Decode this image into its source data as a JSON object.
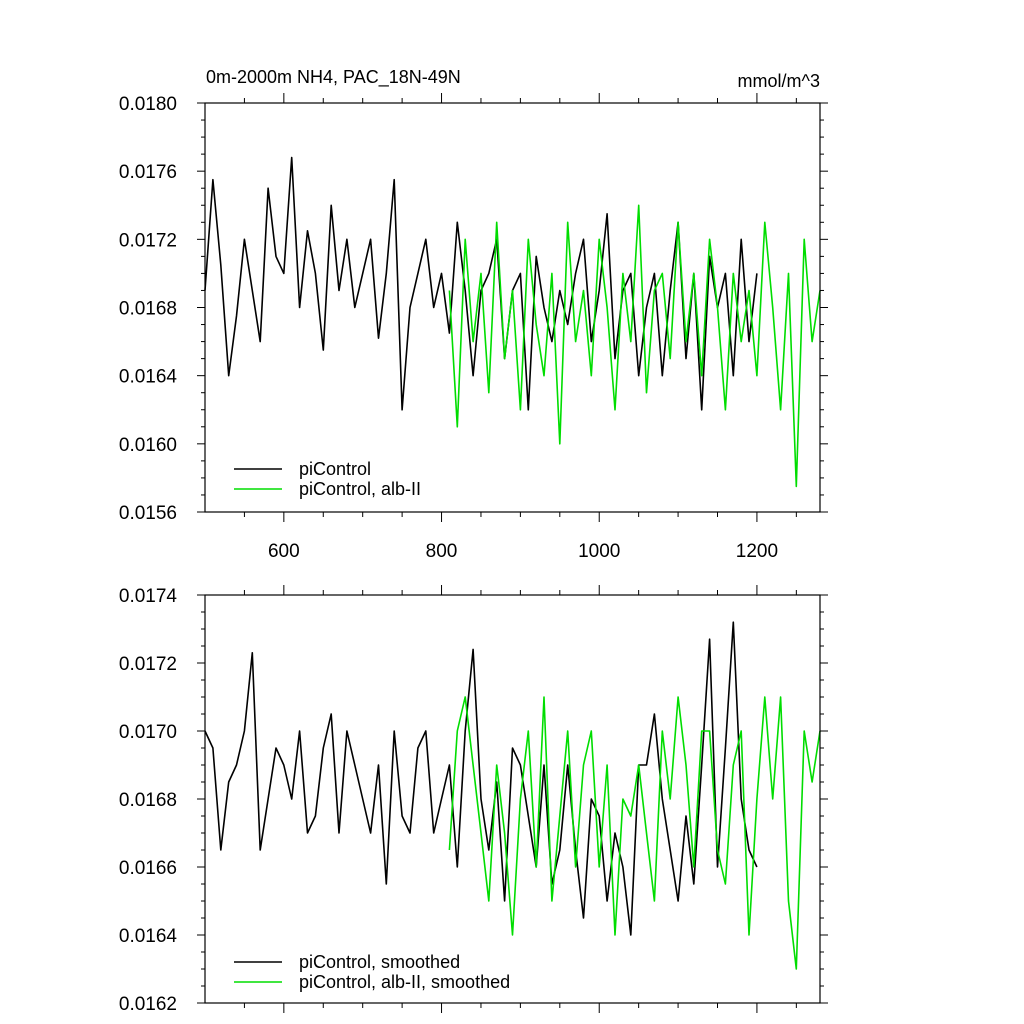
{
  "chart_data": [
    {
      "type": "line",
      "title": "0m-2000m NH4, PAC_18N-49N",
      "units": "mmol/m^3",
      "xlim": [
        500,
        1280
      ],
      "ylim": [
        0.0156,
        0.018
      ],
      "xticks": [
        600,
        800,
        1000,
        1200
      ],
      "xtick_labels": [
        "600",
        "800",
        "1000",
        "1200"
      ],
      "show_xtick_labels": true,
      "yticks": [
        0.0156,
        0.016,
        0.0164,
        0.0168,
        0.0172,
        0.0176,
        0.018
      ],
      "ytick_labels": [
        "0.0156",
        "0.0160",
        "0.0164",
        "0.0168",
        "0.0172",
        "0.0176",
        "0.0180"
      ],
      "grid": false,
      "legend_position": "bottom-left",
      "series": [
        {
          "name": "piControl",
          "color": "#000000",
          "x_start": 500,
          "x_end": 1200,
          "x_step": 10,
          "values": [
            0.0169,
            0.01755,
            0.01705,
            0.0164,
            0.01675,
            0.0172,
            0.0169,
            0.0166,
            0.0175,
            0.0171,
            0.017,
            0.01768,
            0.0168,
            0.01725,
            0.017,
            0.01655,
            0.0174,
            0.0169,
            0.0172,
            0.0168,
            0.017,
            0.0172,
            0.01662,
            0.017,
            0.01755,
            0.0162,
            0.0168,
            0.017,
            0.0172,
            0.0168,
            0.017,
            0.01665,
            0.0173,
            0.0169,
            0.0164,
            0.0169,
            0.017,
            0.0172,
            0.0165,
            0.0169,
            0.017,
            0.0162,
            0.0171,
            0.0168,
            0.0166,
            0.0169,
            0.0167,
            0.017,
            0.0172,
            0.0166,
            0.0169,
            0.01735,
            0.0165,
            0.0169,
            0.017,
            0.0164,
            0.0168,
            0.017,
            0.0164,
            0.0169,
            0.0173,
            0.0165,
            0.017,
            0.0162,
            0.0171,
            0.0168,
            0.017,
            0.0164,
            0.0172,
            0.0166,
            0.017
          ]
        },
        {
          "name": "piControl, alb-II",
          "color": "#00dd00",
          "x_start": 810,
          "x_end": 1280,
          "x_step": 10,
          "values": [
            0.0169,
            0.0161,
            0.0172,
            0.0166,
            0.017,
            0.0163,
            0.0173,
            0.0165,
            0.0169,
            0.0162,
            0.0172,
            0.0167,
            0.0164,
            0.017,
            0.016,
            0.0173,
            0.0166,
            0.0169,
            0.0164,
            0.0172,
            0.0168,
            0.0162,
            0.017,
            0.0166,
            0.0174,
            0.0163,
            0.0169,
            0.017,
            0.0165,
            0.0173,
            0.0166,
            0.017,
            0.0164,
            0.0172,
            0.0168,
            0.0162,
            0.017,
            0.0166,
            0.0169,
            0.0164,
            0.0173,
            0.0168,
            0.0162,
            0.017,
            0.01575,
            0.0172,
            0.0166,
            0.0169
          ]
        }
      ]
    },
    {
      "type": "line",
      "title": "",
      "xlim": [
        500,
        1280
      ],
      "ylim": [
        0.0162,
        0.0174
      ],
      "xticks": [
        600,
        800,
        1000,
        1200
      ],
      "show_xtick_labels": false,
      "yticks": [
        0.0162,
        0.0164,
        0.0166,
        0.0168,
        0.017,
        0.0172,
        0.0174
      ],
      "ytick_labels": [
        "0.0162",
        "0.0164",
        "0.0166",
        "0.0168",
        "0.0170",
        "0.0172",
        "0.0174"
      ],
      "grid": false,
      "legend_position": "bottom-left",
      "series": [
        {
          "name": "piControl, smoothed",
          "color": "#000000",
          "x_start": 500,
          "x_end": 1200,
          "x_step": 10,
          "values": [
            0.017,
            0.01695,
            0.01665,
            0.01685,
            0.0169,
            0.017,
            0.01723,
            0.01665,
            0.0168,
            0.01695,
            0.0169,
            0.0168,
            0.017,
            0.0167,
            0.01675,
            0.01695,
            0.01705,
            0.0167,
            0.017,
            0.0169,
            0.0168,
            0.0167,
            0.0169,
            0.01655,
            0.017,
            0.01675,
            0.0167,
            0.01695,
            0.017,
            0.0167,
            0.0168,
            0.0169,
            0.0166,
            0.017,
            0.01724,
            0.0168,
            0.01665,
            0.01685,
            0.0165,
            0.01695,
            0.0169,
            0.01675,
            0.0166,
            0.0169,
            0.01655,
            0.01665,
            0.0169,
            0.01665,
            0.01645,
            0.0168,
            0.01675,
            0.0165,
            0.0167,
            0.0166,
            0.0164,
            0.0169,
            0.0169,
            0.01705,
            0.0168,
            0.01665,
            0.0165,
            0.01675,
            0.01655,
            0.0169,
            0.01727,
            0.0166,
            0.01695,
            0.01732,
            0.0168,
            0.01665,
            0.0166
          ]
        },
        {
          "name": "piControl, alb-II, smoothed",
          "color": "#00dd00",
          "x_start": 810,
          "x_end": 1280,
          "x_step": 10,
          "values": [
            0.01665,
            0.017,
            0.0171,
            0.0169,
            0.0167,
            0.0165,
            0.0169,
            0.0167,
            0.0164,
            0.0168,
            0.017,
            0.0166,
            0.0171,
            0.0165,
            0.01675,
            0.017,
            0.0166,
            0.0169,
            0.017,
            0.0166,
            0.0169,
            0.0164,
            0.0168,
            0.01675,
            0.0169,
            0.0167,
            0.0165,
            0.017,
            0.0168,
            0.0171,
            0.0169,
            0.0166,
            0.017,
            0.017,
            0.01665,
            0.01655,
            0.0169,
            0.017,
            0.0164,
            0.0168,
            0.0171,
            0.0168,
            0.0171,
            0.0165,
            0.0163,
            0.017,
            0.01685,
            0.017
          ]
        }
      ]
    }
  ]
}
